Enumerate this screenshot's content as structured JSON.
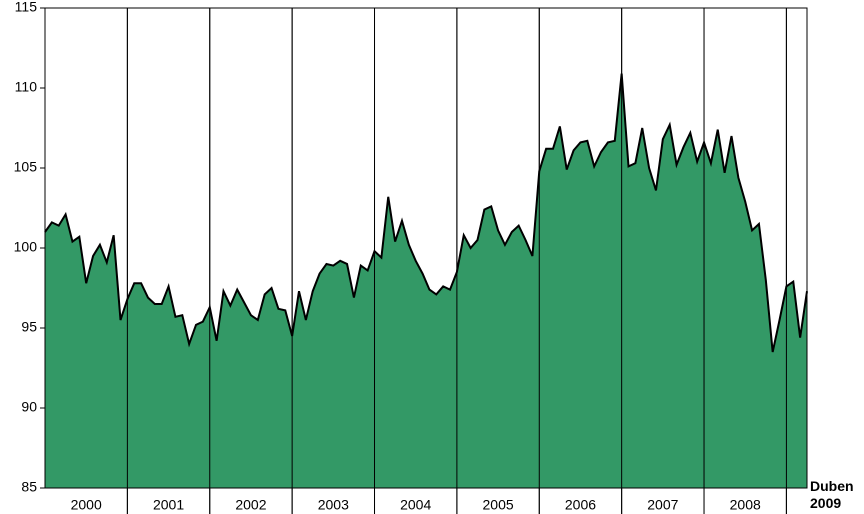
{
  "chart_data": {
    "type": "area",
    "values": [
      101.0,
      101.6,
      101.4,
      102.1,
      100.4,
      100.7,
      97.8,
      99.5,
      100.2,
      99.1,
      100.8,
      95.5,
      96.8,
      97.8,
      97.8,
      96.9,
      96.5,
      96.5,
      97.6,
      95.7,
      95.8,
      94.0,
      95.2,
      95.4,
      96.3,
      94.2,
      97.3,
      96.4,
      97.4,
      96.6,
      95.8,
      95.5,
      97.1,
      97.5,
      96.2,
      96.1,
      94.5,
      97.3,
      95.5,
      97.3,
      98.4,
      99.0,
      98.9,
      99.2,
      99.0,
      96.9,
      98.9,
      98.6,
      99.8,
      99.4,
      103.2,
      100.4,
      101.7,
      100.2,
      99.2,
      98.4,
      97.4,
      97.1,
      97.6,
      97.4,
      98.5,
      100.8,
      100.0,
      100.5,
      102.4,
      102.6,
      101.1,
      100.2,
      101.0,
      101.4,
      100.5,
      99.5,
      104.8,
      106.2,
      106.2,
      107.6,
      104.9,
      106.1,
      106.6,
      106.7,
      105.1,
      106.0,
      106.6,
      106.7,
      110.9,
      105.1,
      105.3,
      107.5,
      105.0,
      103.6,
      106.8,
      107.7,
      105.2,
      106.3,
      107.2,
      105.4,
      106.6,
      105.3,
      107.4,
      104.7,
      107.0,
      104.4,
      102.9,
      101.1,
      101.5,
      98.0,
      93.5,
      95.5,
      97.6,
      97.9,
      94.4,
      97.3
    ],
    "year_labels": [
      "2000",
      "2001",
      "2002",
      "2003",
      "2004",
      "2005",
      "2006",
      "2007",
      "2008"
    ],
    "end_label": "Duben 2009",
    "color": "#339966",
    "ylim": [
      85,
      115
    ],
    "yticks": [
      85,
      90,
      95,
      100,
      105,
      110,
      115
    ]
  }
}
